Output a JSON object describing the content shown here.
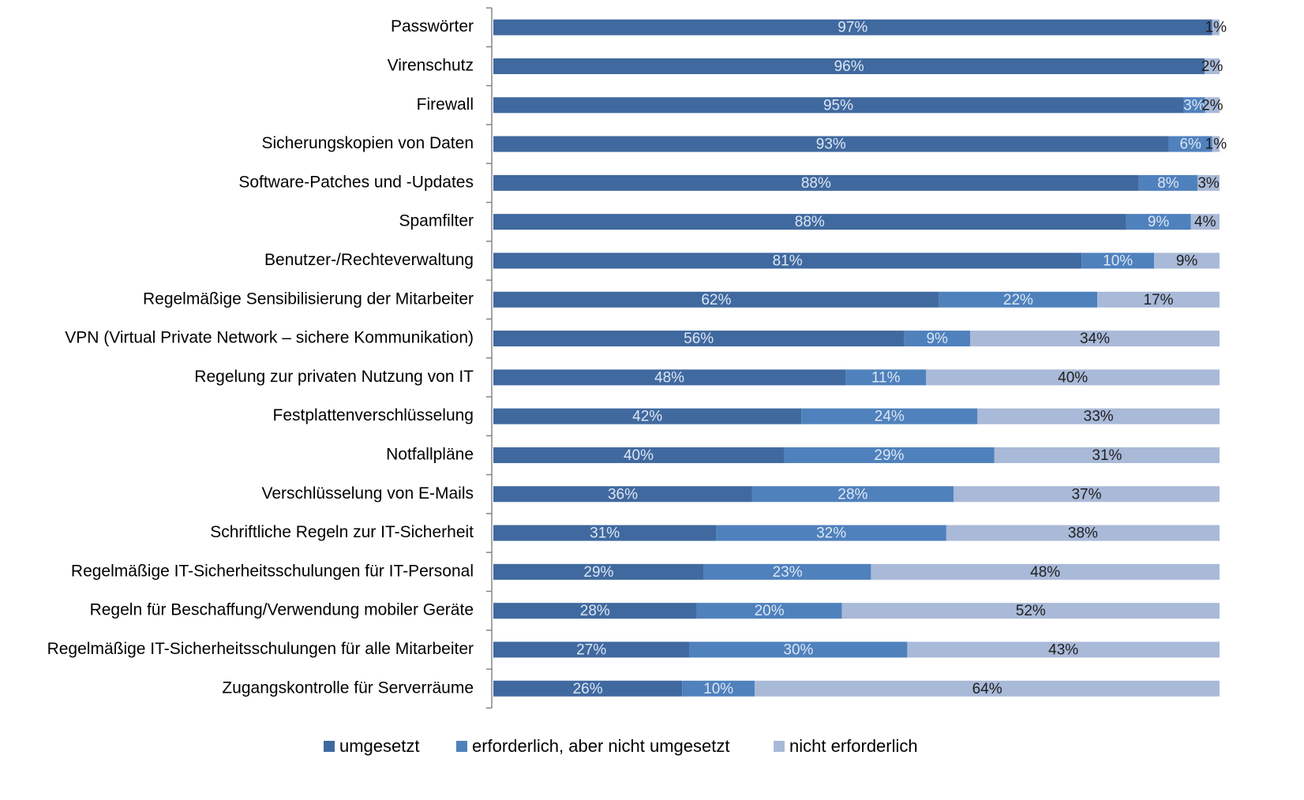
{
  "chart_data": {
    "type": "bar",
    "orientation": "horizontal",
    "stacked": "percent",
    "categories": [
      "Passwörter",
      "Virenschutz",
      "Firewall",
      "Sicherungskopien von Daten",
      "Software-Patches und -Updates",
      "Spamfilter",
      "Benutzer-/Rechteverwaltung",
      "Regelmäßige Sensibilisierung der Mitarbeiter",
      "VPN (Virtual Private Network – sichere Kommunikation)",
      "Regelung zur privaten Nutzung von IT",
      "Festplattenverschlüsselung",
      "Notfallpläne",
      "Verschlüsselung von E-Mails",
      "Schriftliche Regeln zur IT-Sicherheit",
      "Regelmäßige IT-Sicherheitsschulungen für IT-Personal",
      "Regeln für Beschaffung/Verwendung mobiler Geräte",
      "Regelmäßige IT-Sicherheitsschulungen für alle Mitarbeiter",
      "Zugangskontrolle für Serverräume"
    ],
    "series": [
      {
        "name": "umgesetzt",
        "color": "#40699f",
        "label_color": "#dce6f2",
        "values": [
          97,
          96,
          95,
          93,
          88,
          88,
          81,
          62,
          56,
          48,
          42,
          40,
          36,
          31,
          29,
          28,
          27,
          26
        ],
        "value_labels": [
          "97%",
          "96%",
          "95%",
          "93%",
          "88%",
          "88%",
          "81%",
          "62%",
          "56%",
          "48%",
          "42%",
          "40%",
          "36%",
          "31%",
          "29%",
          "28%",
          "27%",
          "26%"
        ]
      },
      {
        "name": "erforderlich, aber nicht umgesetzt",
        "color": "#4f81bd",
        "label_color": "#dce6f2",
        "values": [
          null,
          null,
          3,
          6,
          8,
          9,
          10,
          22,
          9,
          11,
          24,
          29,
          28,
          32,
          23,
          20,
          30,
          10
        ],
        "value_labels": [
          null,
          null,
          "3%",
          "6%",
          "8%",
          "9%",
          "10%",
          "22%",
          "9%",
          "11%",
          "24%",
          "29%",
          "28%",
          "32%",
          "23%",
          "20%",
          "30%",
          "10%"
        ]
      },
      {
        "name": "nicht erforderlich",
        "color": "#a9b9d8",
        "label_color": "#1f1f1f",
        "values": [
          1,
          2,
          2,
          1,
          3,
          4,
          9,
          17,
          34,
          40,
          33,
          31,
          37,
          38,
          48,
          52,
          43,
          64
        ],
        "value_labels": [
          "1%",
          "2%",
          "2%",
          "1%",
          "3%",
          "4%",
          "9%",
          "17%",
          "34%",
          "40%",
          "33%",
          "31%",
          "37%",
          "38%",
          "48%",
          "52%",
          "43%",
          "64%"
        ]
      }
    ]
  }
}
